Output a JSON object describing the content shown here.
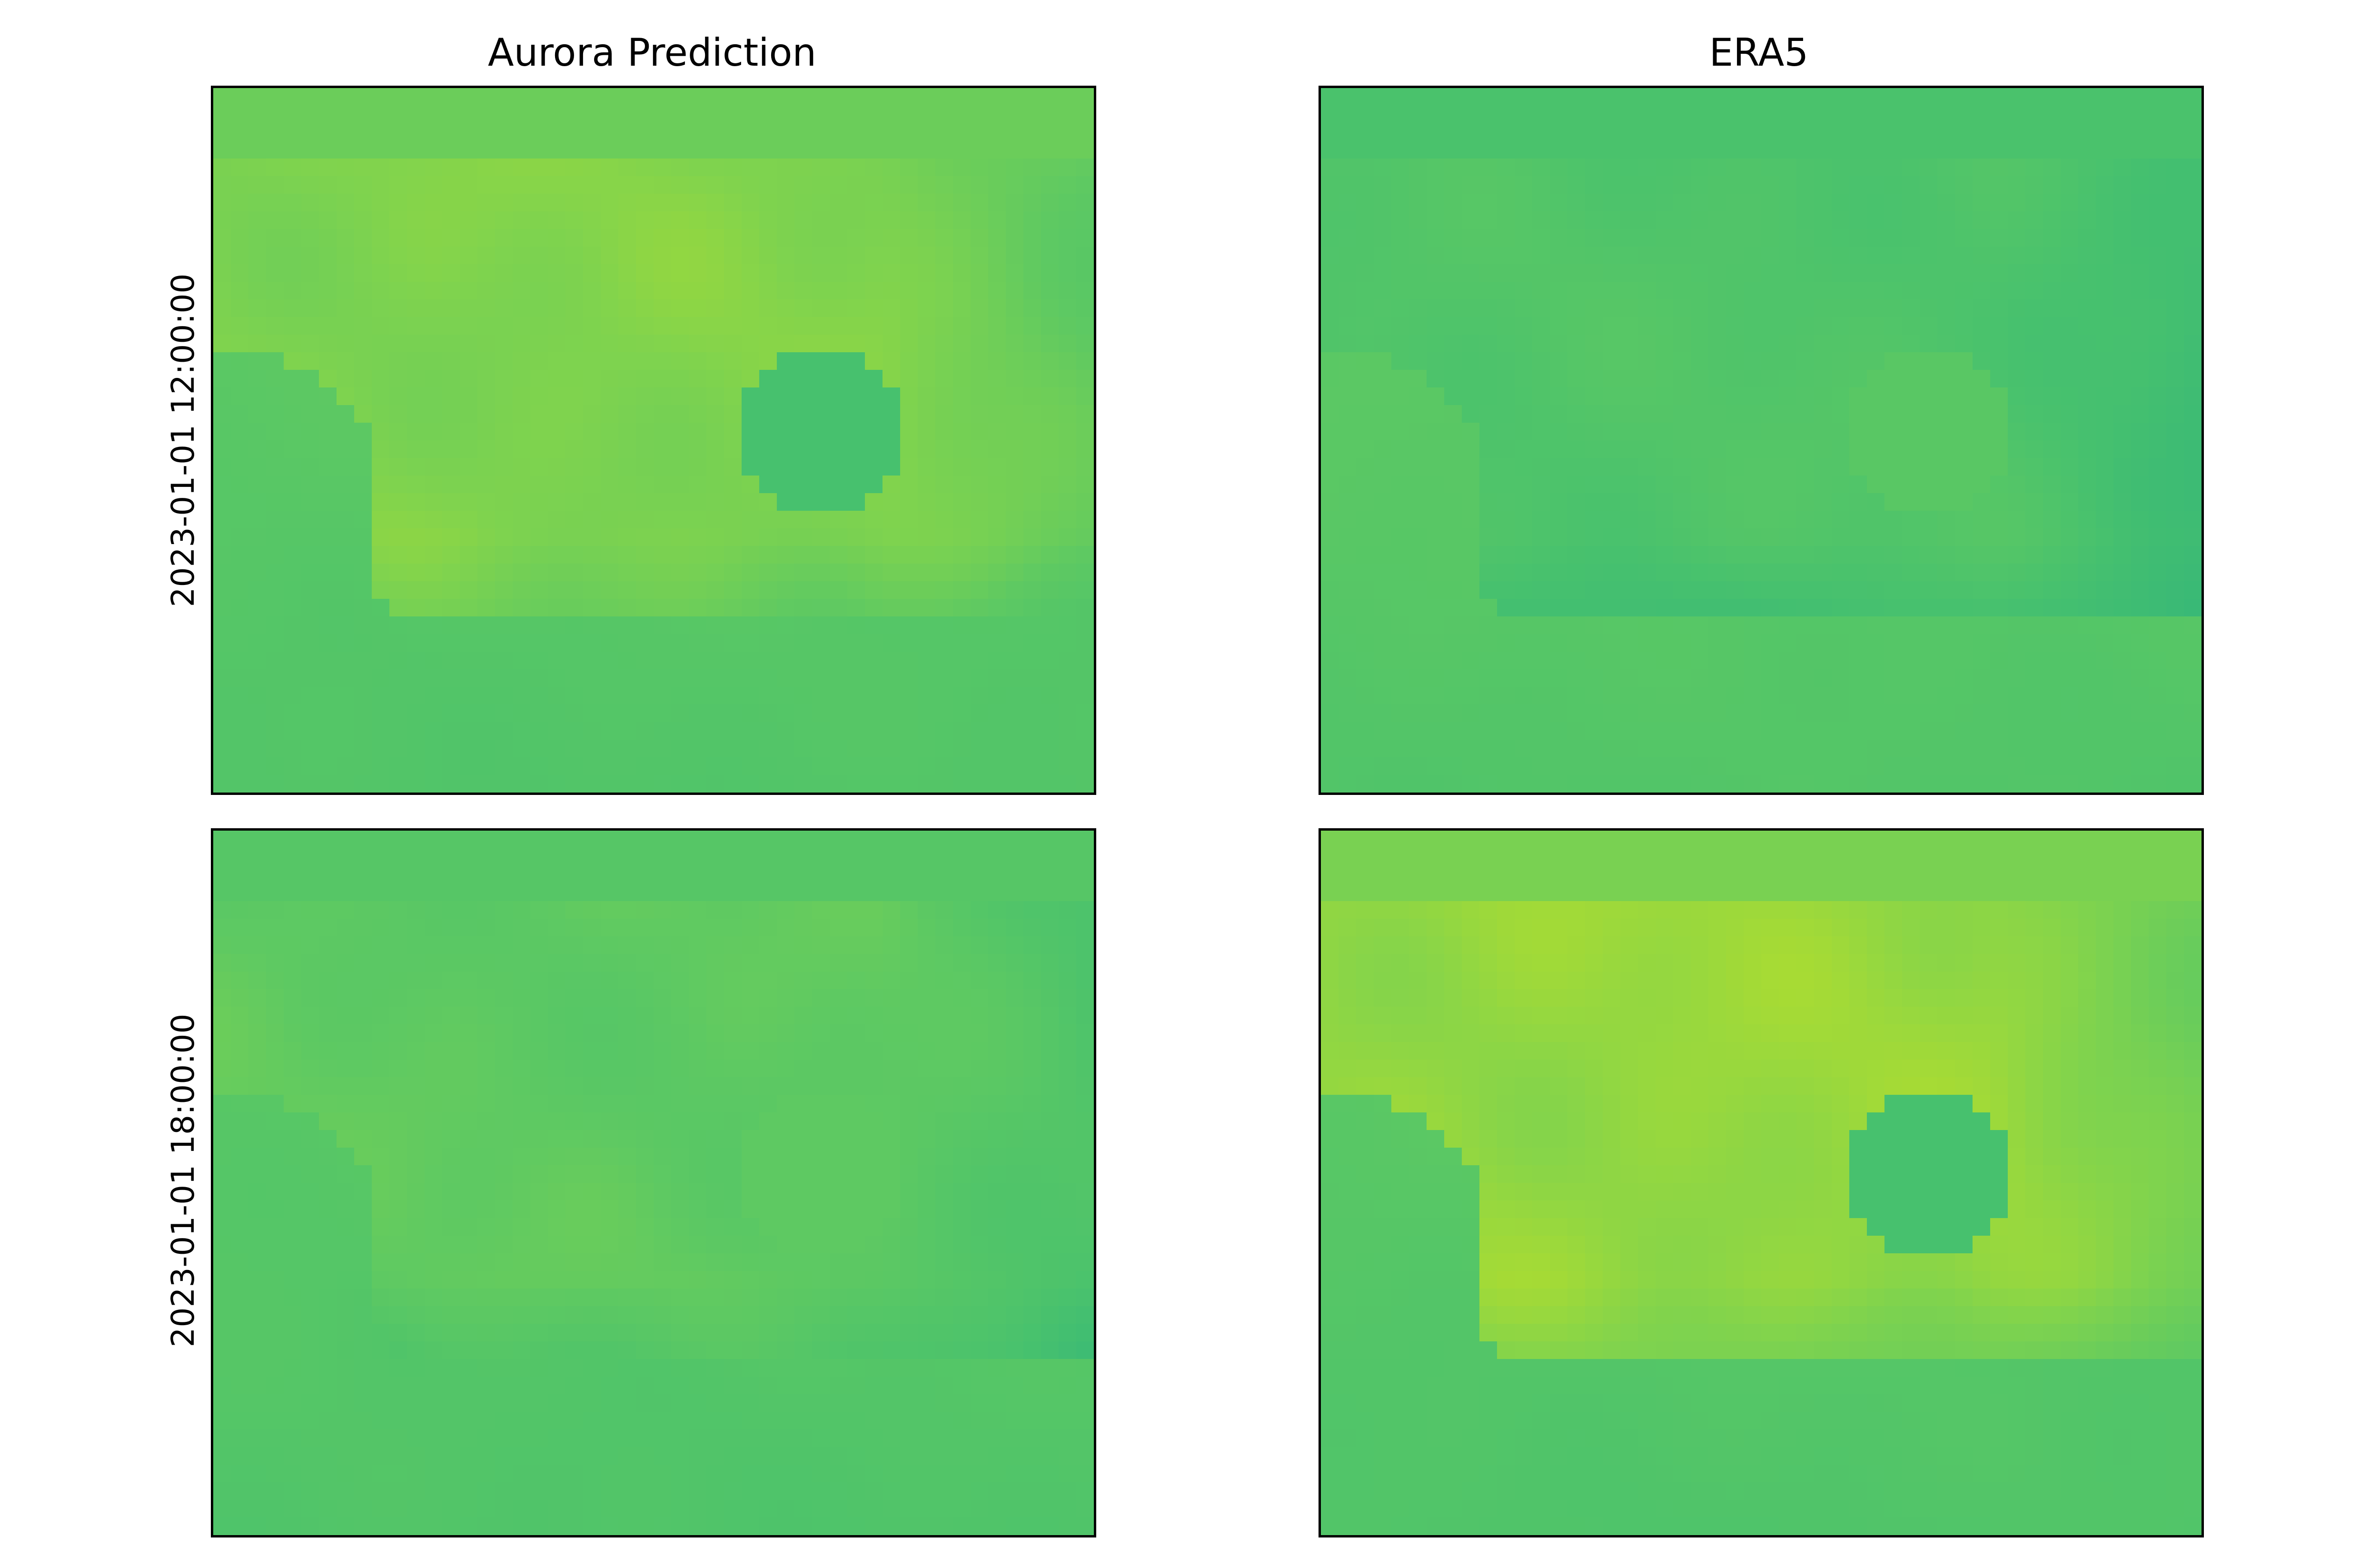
{
  "figure": {
    "columns": [
      "Aurora Prediction",
      "ERA5"
    ],
    "rows": [
      "2023-01-01 12:00:00",
      "2023-01-01 18:00:00"
    ]
  },
  "chart_data": {
    "type": "heatmap",
    "colormap": "viridis",
    "axes_ticks": "none",
    "grid": false,
    "legend": "none",
    "colors": {
      "ocean": "#47c16e",
      "land_low": "#5ec962",
      "land_mid": "#7fd34e",
      "land_high": "#addc30",
      "land_cool": "#2fb47c"
    },
    "panels": [
      {
        "column": "Aurora Prediction",
        "row": "2023-01-01 12:00:00",
        "land_level": 0.8,
        "cool_spot_level": 0.35,
        "ocean_level": 0.62
      },
      {
        "column": "ERA5",
        "row": "2023-01-01 12:00:00",
        "land_level": 0.45,
        "cool_spot_level": 0.55,
        "ocean_level": 0.62
      },
      {
        "column": "Aurora Prediction",
        "row": "2023-01-01 18:00:00",
        "land_level": 0.6,
        "cool_spot_level": 0.6,
        "ocean_level": 0.6
      },
      {
        "column": "ERA5",
        "row": "2023-01-01 18:00:00",
        "land_level": 0.9,
        "cool_spot_level": 0.35,
        "ocean_level": 0.6
      }
    ]
  }
}
